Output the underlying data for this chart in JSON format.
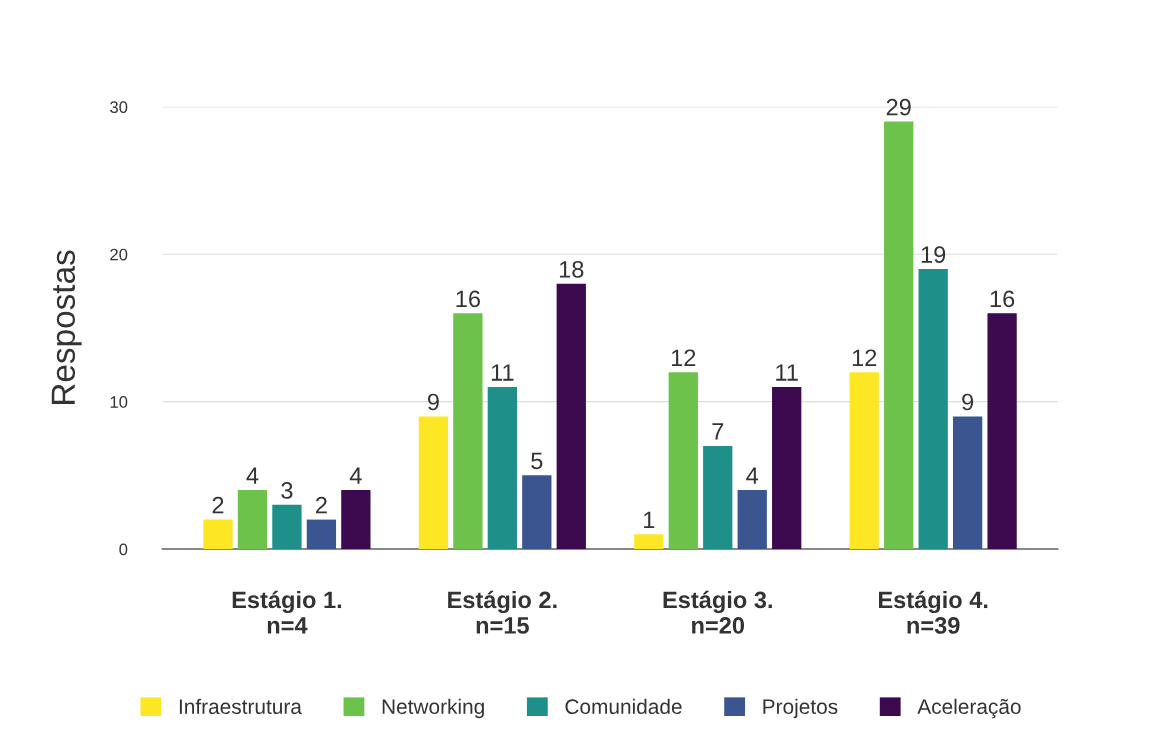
{
  "chart_data": {
    "type": "bar",
    "ylabel": "Respostas",
    "categories": [
      "Estágio 1.\nn=4",
      "Estágio 2.\nn=15",
      "Estágio 3.\nn=20",
      "Estágio 4.\nn=39"
    ],
    "series": [
      {
        "name": "Infraestrutura",
        "color": "#fde725",
        "values": [
          2,
          9,
          1,
          12
        ]
      },
      {
        "name": "Networking",
        "color": "#6cc24a",
        "values": [
          4,
          16,
          12,
          29
        ]
      },
      {
        "name": "Comunidade",
        "color": "#1f8f8a",
        "values": [
          3,
          11,
          7,
          19
        ]
      },
      {
        "name": "Projetos",
        "color": "#3b5590",
        "values": [
          2,
          5,
          4,
          9
        ]
      },
      {
        "name": "Aceleração",
        "color": "#3d0a4f",
        "values": [
          4,
          18,
          11,
          16
        ]
      }
    ],
    "ylim": [
      0,
      30
    ],
    "yticks": [
      0,
      10,
      20,
      30
    ],
    "grid": "y",
    "legend": "bottom",
    "data_labels": true
  }
}
